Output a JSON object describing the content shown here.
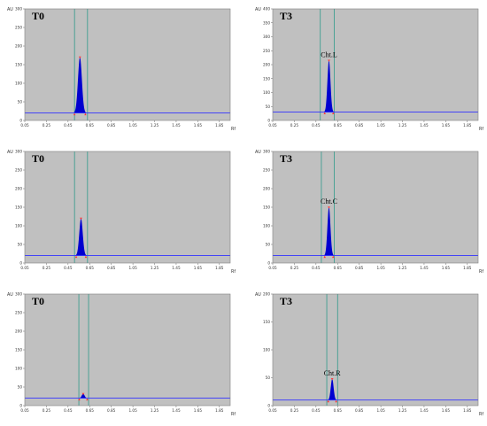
{
  "chart_data": [
    {
      "type": "line",
      "title": "T0",
      "peak_label": "",
      "ylim": [
        0,
        300
      ],
      "y_ticks": [
        0,
        50,
        100,
        150,
        200,
        250,
        300
      ],
      "y_unit": "AU",
      "x_unit": "Rf",
      "xlim": [
        0.05,
        1.95
      ],
      "x_ticks": [
        "0.05",
        "0.25",
        "0.45",
        "0.65",
        "0.85",
        "1.05",
        "1.25",
        "1.45",
        "1.65",
        "1.85"
      ],
      "baseline": 20,
      "bounds": [
        0.51,
        0.63
      ],
      "peak": {
        "center": 0.56,
        "height": 170,
        "sigma": 0.018
      }
    },
    {
      "type": "line",
      "title": "T3",
      "peak_label": "Cht.L",
      "ylim": [
        0,
        400
      ],
      "y_ticks": [
        0,
        50,
        100,
        150,
        200,
        250,
        300,
        350,
        400
      ],
      "y_unit": "AU",
      "x_unit": "Rf",
      "xlim": [
        0.05,
        1.95
      ],
      "x_ticks": [
        "0.05",
        "0.25",
        "0.45",
        "0.65",
        "0.85",
        "1.05",
        "1.25",
        "1.45",
        "1.65",
        "1.85"
      ],
      "baseline": 30,
      "bounds": [
        0.49,
        0.62
      ],
      "peak": {
        "center": 0.57,
        "height": 215,
        "sigma": 0.014
      }
    },
    {
      "type": "line",
      "title": "T0",
      "peak_label": "",
      "ylim": [
        0,
        300
      ],
      "y_ticks": [
        0,
        50,
        100,
        150,
        200,
        250,
        300
      ],
      "y_unit": "AU",
      "x_unit": "Rf",
      "xlim": [
        0.05,
        1.95
      ],
      "x_ticks": [
        "0.05",
        "0.25",
        "0.45",
        "0.65",
        "0.85",
        "1.05",
        "1.25",
        "1.45",
        "1.65",
        "1.85"
      ],
      "baseline": 20,
      "bounds": [
        0.51,
        0.63
      ],
      "peak": {
        "center": 0.57,
        "height": 120,
        "sigma": 0.016
      }
    },
    {
      "type": "line",
      "title": "T3",
      "peak_label": "Cht.C",
      "ylim": [
        0,
        300
      ],
      "y_ticks": [
        0,
        50,
        100,
        150,
        200,
        250,
        300
      ],
      "y_unit": "AU",
      "x_unit": "Rf",
      "xlim": [
        0.05,
        1.95
      ],
      "x_ticks": [
        "0.05",
        "0.25",
        "0.45",
        "0.65",
        "0.85",
        "1.05",
        "1.25",
        "1.45",
        "1.65",
        "1.85"
      ],
      "baseline": 20,
      "bounds": [
        0.5,
        0.62
      ],
      "peak": {
        "center": 0.57,
        "height": 150,
        "sigma": 0.014
      }
    },
    {
      "type": "line",
      "title": "T0",
      "peak_label": "",
      "ylim": [
        0,
        300
      ],
      "y_ticks": [
        0,
        50,
        100,
        150,
        200,
        250,
        300
      ],
      "y_unit": "AU",
      "x_unit": "Rf",
      "xlim": [
        0.05,
        1.95
      ],
      "x_ticks": [
        "0.05",
        "0.25",
        "0.45",
        "0.65",
        "0.85",
        "1.05",
        "1.25",
        "1.45",
        "1.65",
        "1.85"
      ],
      "baseline": 20,
      "bounds": [
        0.55,
        0.64
      ],
      "peak": {
        "center": 0.59,
        "height": 32,
        "sigma": 0.013
      }
    },
    {
      "type": "line",
      "title": "T3",
      "peak_label": "Cht.R",
      "ylim": [
        0,
        200
      ],
      "y_ticks": [
        0,
        50,
        100,
        150,
        200
      ],
      "y_unit": "AU",
      "x_unit": "Rf",
      "xlim": [
        0.05,
        1.95
      ],
      "x_ticks": [
        "0.05",
        "0.25",
        "0.45",
        "0.65",
        "0.85",
        "1.05",
        "1.25",
        "1.45",
        "1.65",
        "1.85"
      ],
      "baseline": 10,
      "bounds": [
        0.55,
        0.65
      ],
      "peak": {
        "center": 0.6,
        "height": 48,
        "sigma": 0.013
      }
    }
  ]
}
